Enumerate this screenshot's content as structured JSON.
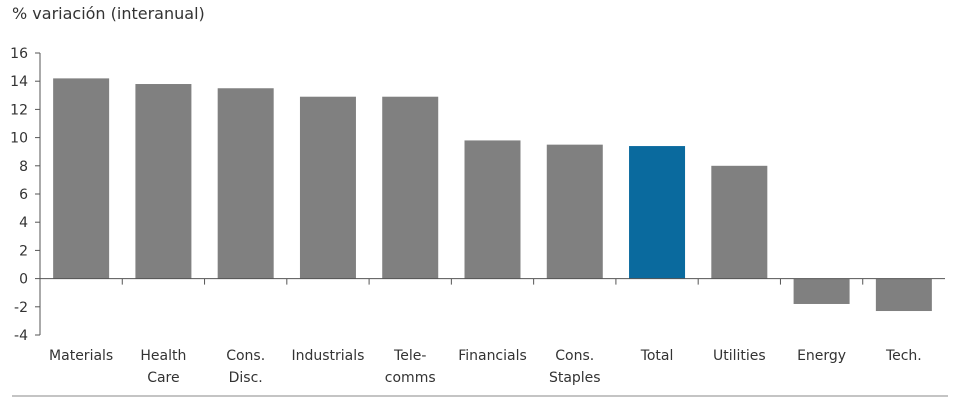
{
  "chart_data": {
    "type": "bar",
    "title": "% variación (interanual)",
    "xlabel": "",
    "ylabel": "",
    "ylim": [
      -4,
      16
    ],
    "yticks": [
      16,
      14,
      12,
      10,
      8,
      6,
      4,
      2,
      0,
      -2,
      -4
    ],
    "grid": false,
    "categories": [
      [
        "Materials"
      ],
      [
        "Health",
        "Care"
      ],
      [
        "Cons.",
        "Disc."
      ],
      [
        "Industrials"
      ],
      [
        "Tele-",
        "comms"
      ],
      [
        "Financials"
      ],
      [
        "Cons.",
        "Staples"
      ],
      [
        "Total"
      ],
      [
        "Utilities"
      ],
      [
        "Energy"
      ],
      [
        "Tech."
      ]
    ],
    "values": [
      14.2,
      13.8,
      13.5,
      12.9,
      12.9,
      9.8,
      9.5,
      9.4,
      8.0,
      -1.8,
      -2.3
    ],
    "colors": {
      "default": "#808080",
      "highlight": "#0a6a9e",
      "highlight_category": "Total"
    }
  }
}
